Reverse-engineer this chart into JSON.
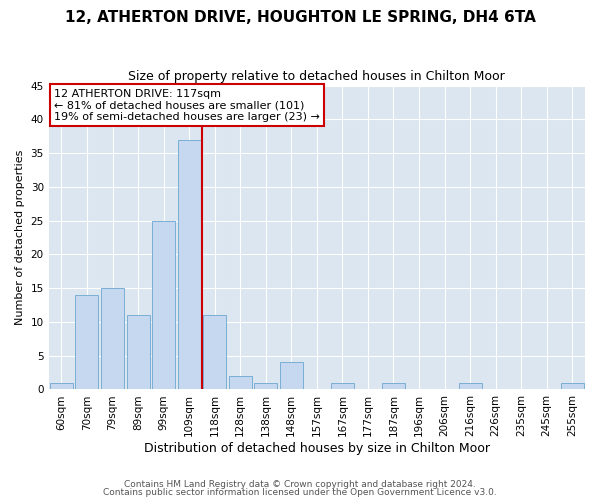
{
  "title": "12, ATHERTON DRIVE, HOUGHTON LE SPRING, DH4 6TA",
  "subtitle": "Size of property relative to detached houses in Chilton Moor",
  "xlabel": "Distribution of detached houses by size in Chilton Moor",
  "ylabel": "Number of detached properties",
  "footnote1": "Contains HM Land Registry data © Crown copyright and database right 2024.",
  "footnote2": "Contains public sector information licensed under the Open Government Licence v3.0.",
  "bar_labels": [
    "60sqm",
    "70sqm",
    "79sqm",
    "89sqm",
    "99sqm",
    "109sqm",
    "118sqm",
    "128sqm",
    "138sqm",
    "148sqm",
    "157sqm",
    "167sqm",
    "177sqm",
    "187sqm",
    "196sqm",
    "206sqm",
    "216sqm",
    "226sqm",
    "235sqm",
    "245sqm",
    "255sqm"
  ],
  "bar_values": [
    1,
    14,
    15,
    11,
    25,
    37,
    11,
    2,
    1,
    4,
    0,
    1,
    0,
    1,
    0,
    0,
    1,
    0,
    0,
    0,
    1
  ],
  "bar_color": "#c5d8ef",
  "bar_edge_color": "#7aaed4",
  "vline_color": "#cc0000",
  "ylim": [
    0,
    45
  ],
  "yticks": [
    0,
    5,
    10,
    15,
    20,
    25,
    30,
    35,
    40,
    45
  ],
  "annotation_lines": [
    "12 ATHERTON DRIVE: 117sqm",
    "← 81% of detached houses are smaller (101)",
    "19% of semi-detached houses are larger (23) →"
  ],
  "annotation_box_edgecolor": "#cc0000",
  "fig_bg_color": "#ffffff",
  "plot_bg_color": "#dce6f0",
  "grid_color": "#ffffff",
  "title_fontsize": 11,
  "subtitle_fontsize": 9,
  "annotation_fontsize": 8,
  "ylabel_fontsize": 8,
  "xlabel_fontsize": 9,
  "tick_fontsize": 7.5,
  "footnote_fontsize": 6.5
}
